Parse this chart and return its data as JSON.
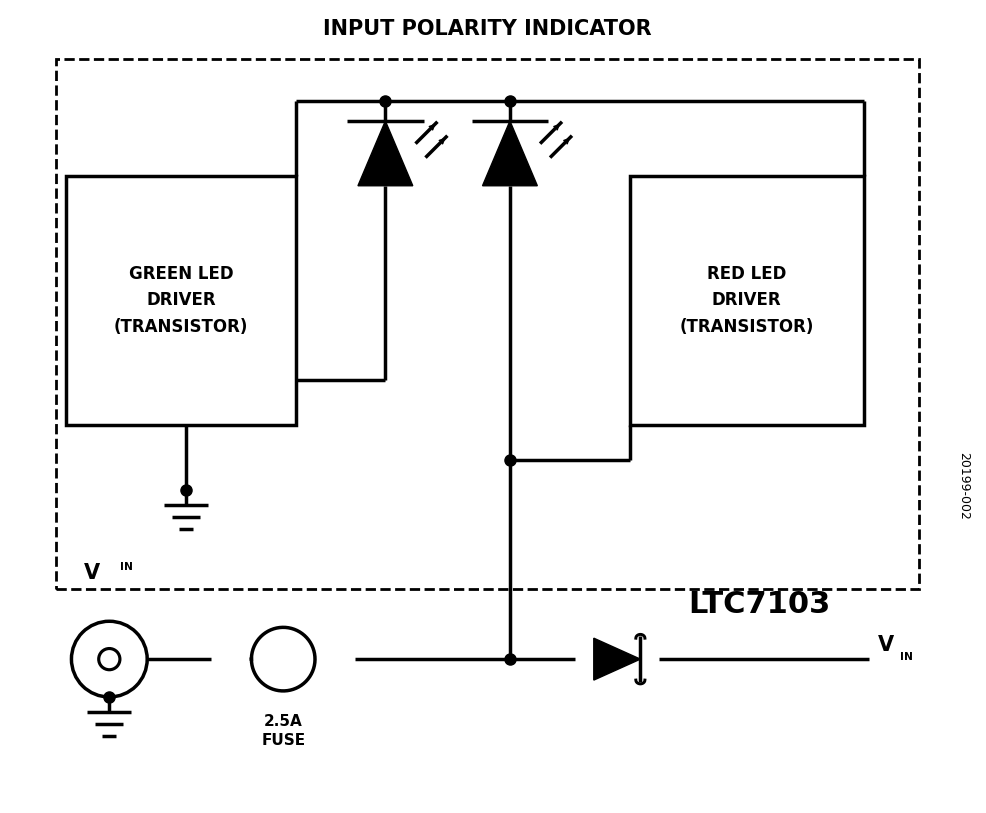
{
  "title": "INPUT POLARITY INDICATOR",
  "subtitle_right": "20199-002",
  "ltc_label": "LTC7103",
  "fuse_label": "2.5A\nFUSE",
  "green_led_box_text": "GREEN LED\nDRIVER\n(TRANSISTOR)",
  "red_led_box_text": "RED LED\nDRIVER\n(TRANSISTOR)",
  "bg_color": "#ffffff",
  "line_color": "#000000",
  "lw": 2.5
}
